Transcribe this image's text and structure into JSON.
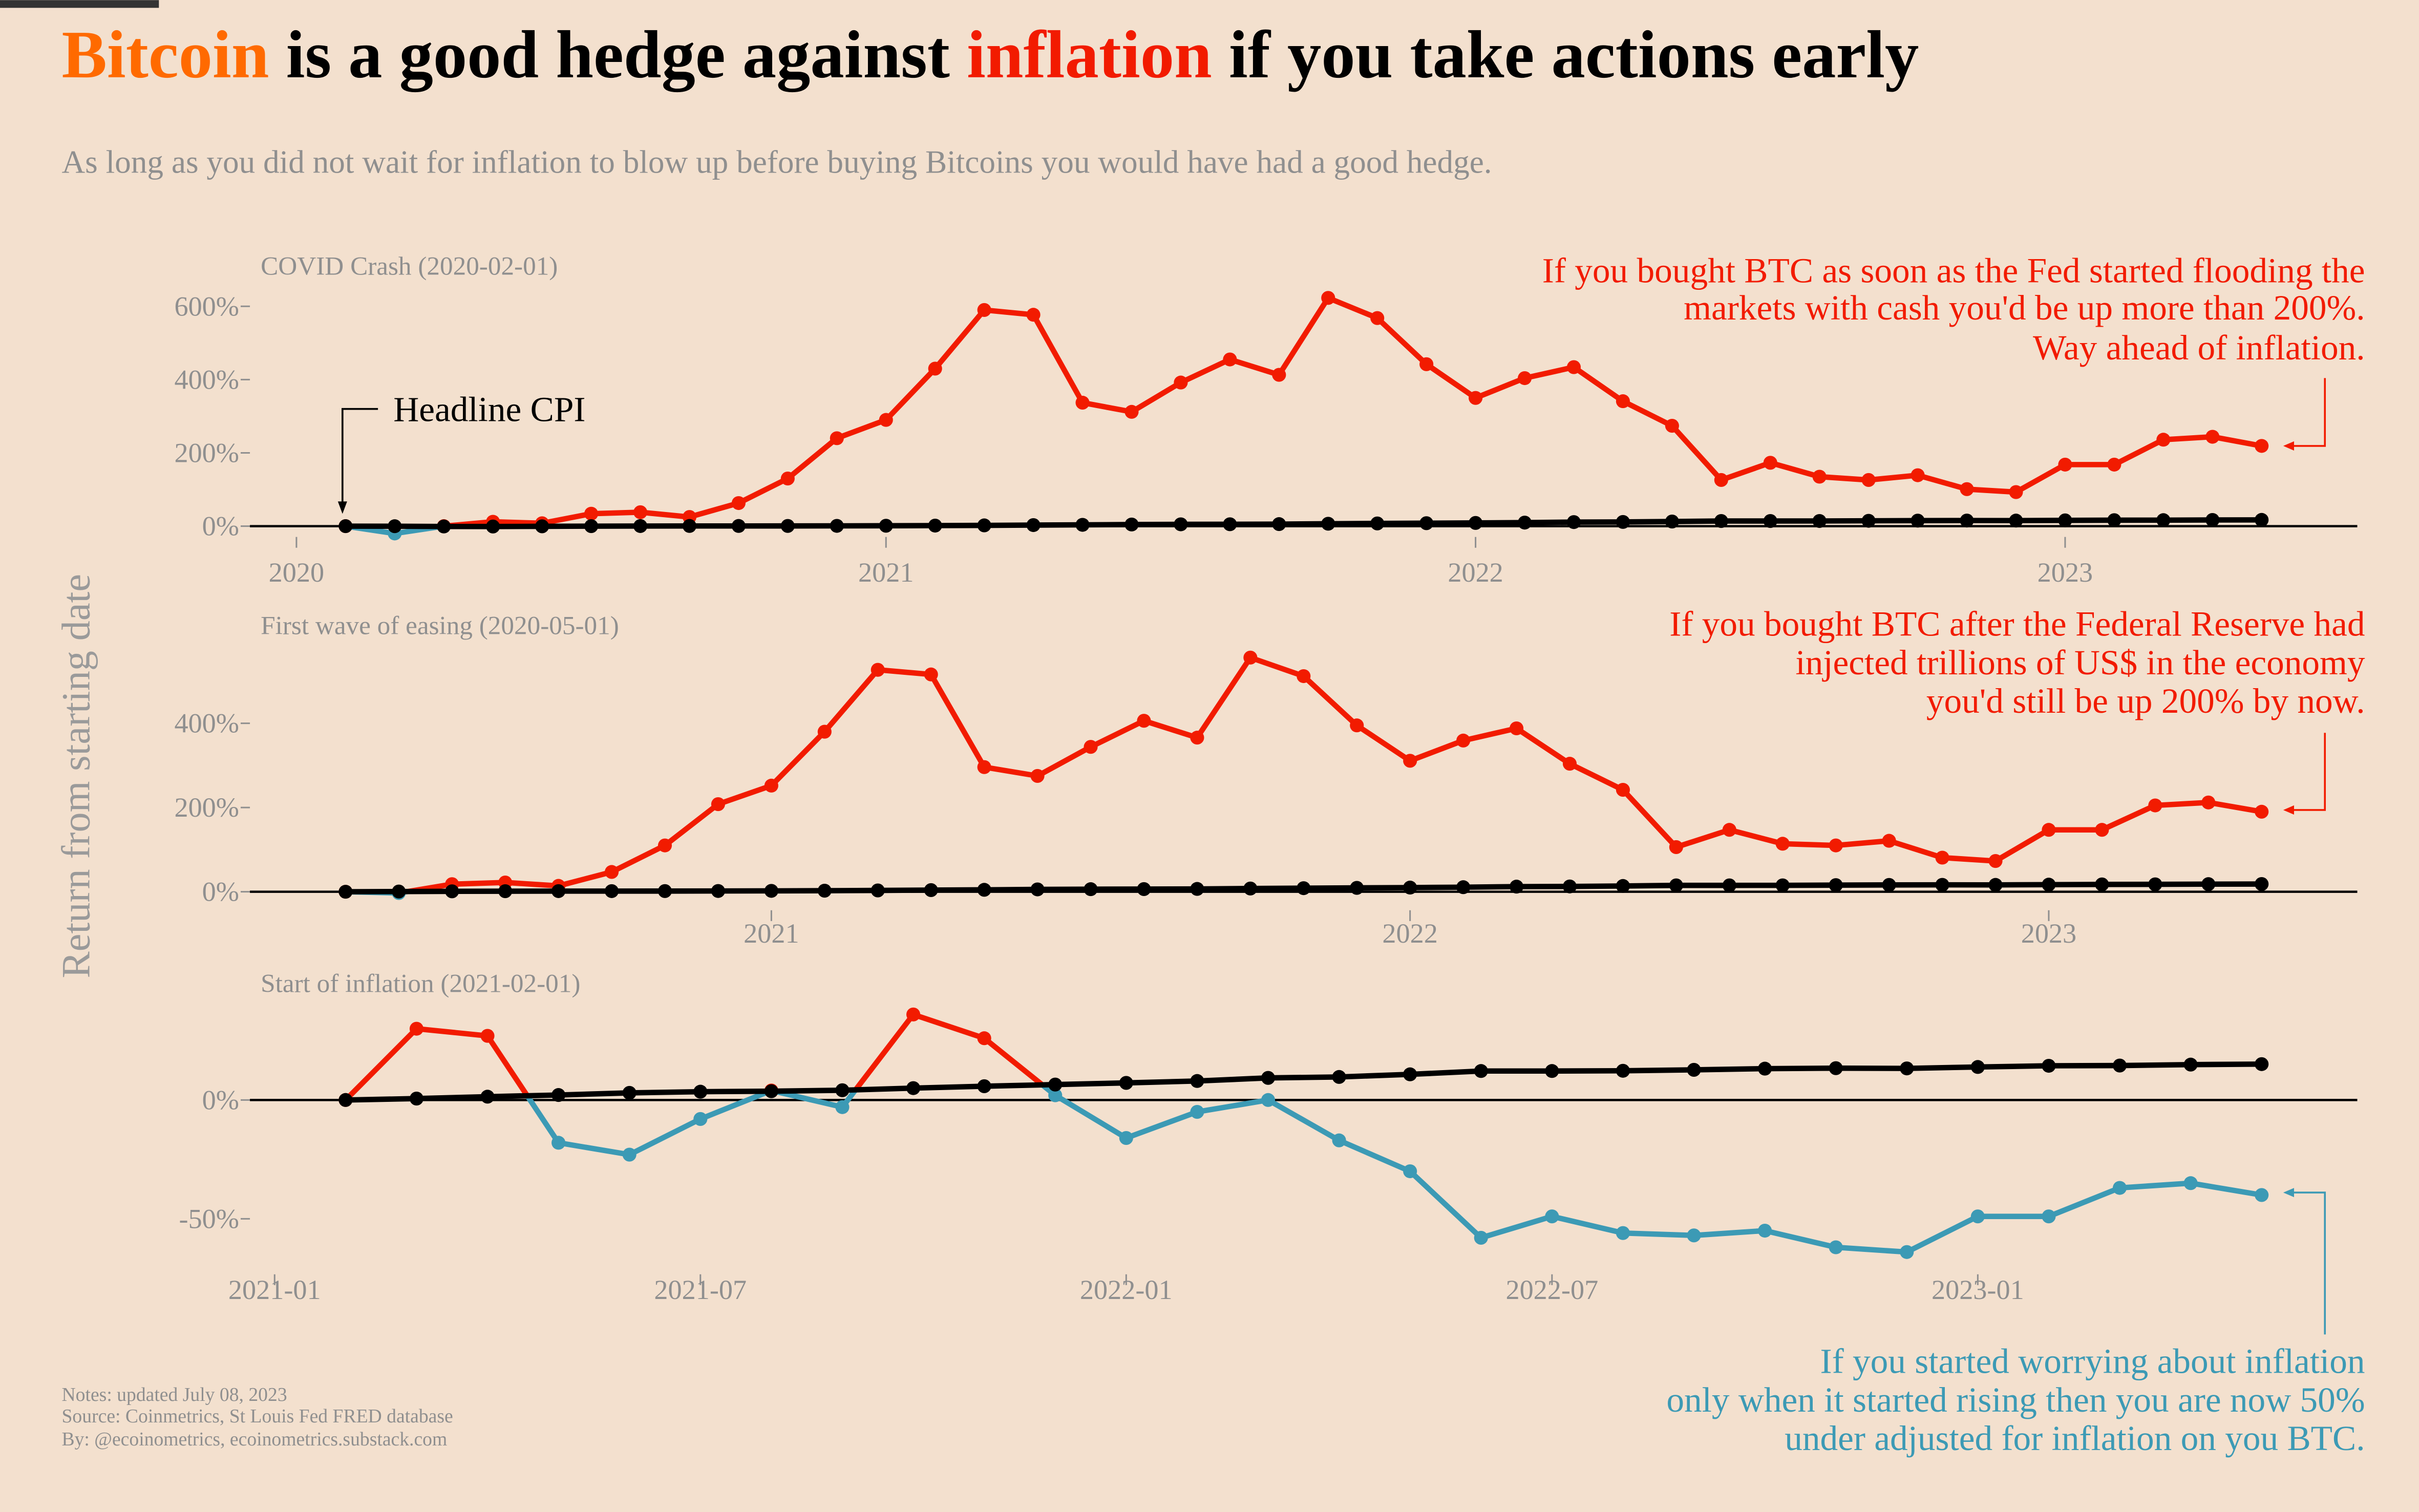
{
  "title": {
    "part1": "Bitcoin",
    "part2": " is a good hedge against ",
    "part3": "inflation",
    "part4": " if you take actions early"
  },
  "subtitle": "As long as you did not wait for inflation to blow up before buying Bitcoins you would have had a good hedge.",
  "colors": {
    "background": "#f3e0ce",
    "bitcoin_orange": "#ff6a00",
    "btc_above_cpi": "#f21b00",
    "btc_below_cpi": "#3c9ab5",
    "cpi": "#000000",
    "muted_text": "#8f8f8f"
  },
  "ylabel": "Return from starting date",
  "notes": [
    "Notes: updated July 08, 2023",
    "Source: Coinmetrics, St Louis Fed FRED database",
    "By: @ecoinometrics, ecoinometrics.substack.com"
  ],
  "chart_data": [
    {
      "type": "line",
      "title": "COVID Crash (2020-02-01)",
      "ylabel": "Return from starting date",
      "yticks": [
        {
          "v": 600,
          "label": "600%"
        },
        {
          "v": 400,
          "label": "400%"
        },
        {
          "v": 200,
          "label": "200%"
        },
        {
          "v": 0,
          "label": "0%"
        }
      ],
      "xticks": [
        {
          "date": "2020-01",
          "label": "2020"
        },
        {
          "date": "2021-01",
          "label": "2021"
        },
        {
          "date": "2022-01",
          "label": "2022"
        },
        {
          "date": "2023-01",
          "label": "2023"
        }
      ],
      "x": [
        "2020-02",
        "2020-03",
        "2020-04",
        "2020-05",
        "2020-06",
        "2020-07",
        "2020-08",
        "2020-09",
        "2020-10",
        "2020-11",
        "2020-12",
        "2021-01",
        "2021-02",
        "2021-03",
        "2021-04",
        "2021-05",
        "2021-06",
        "2021-07",
        "2021-08",
        "2021-09",
        "2021-10",
        "2021-11",
        "2021-12",
        "2022-01",
        "2022-02",
        "2022-03",
        "2022-04",
        "2022-05",
        "2022-06",
        "2022-07",
        "2022-08",
        "2022-09",
        "2022-10",
        "2022-11",
        "2022-12",
        "2023-01",
        "2023-02",
        "2023-03",
        "2023-04",
        "2023-05"
      ],
      "series": [
        {
          "name": "BTC",
          "values": [
            0,
            -20,
            0,
            12,
            8,
            34,
            38,
            25,
            63,
            130,
            240,
            290,
            430,
            590,
            577,
            337,
            312,
            392,
            455,
            413,
            623,
            568,
            442,
            350,
            404,
            434,
            341,
            274,
            126,
            173,
            135,
            126,
            139,
            101,
            93,
            168,
            168,
            236,
            244,
            219
          ]
        },
        {
          "name": "Headline CPI",
          "values": [
            0,
            -0.2,
            -0.9,
            -1.0,
            -0.5,
            0,
            0.3,
            0.5,
            0.5,
            0.6,
            0.8,
            1.1,
            1.5,
            2.1,
            2.9,
            3.6,
            4.5,
            5.0,
            5.2,
            5.6,
            6.6,
            7.4,
            8.1,
            8.8,
            9.7,
            11.1,
            11.5,
            12.6,
            14.0,
            14.0,
            14.1,
            14.6,
            15.1,
            15.3,
            15.2,
            15.8,
            16.3,
            16.4,
            16.9,
            17.1
          ]
        }
      ],
      "ylim": [
        -40,
        650
      ],
      "annotations": [
        {
          "text": "Headline CPI",
          "points_to": "CPI start"
        },
        {
          "lines": [
            "If you bought BTC as soon as the Fed started flooding the",
            "markets with cash you'd be up more than 200%.",
            "Way ahead of inflation."
          ],
          "color": "#f21b00"
        }
      ]
    },
    {
      "type": "line",
      "title": "First wave of easing (2020-05-01)",
      "yticks": [
        {
          "v": 400,
          "label": "400%"
        },
        {
          "v": 200,
          "label": "200%"
        },
        {
          "v": 0,
          "label": "0%"
        }
      ],
      "xticks": [
        {
          "date": "2021-01",
          "label": "2021"
        },
        {
          "date": "2022-01",
          "label": "2022"
        },
        {
          "date": "2023-01",
          "label": "2023"
        }
      ],
      "x": [
        "2020-05",
        "2020-06",
        "2020-07",
        "2020-08",
        "2020-09",
        "2020-10",
        "2020-11",
        "2020-12",
        "2021-01",
        "2021-02",
        "2021-03",
        "2021-04",
        "2021-05",
        "2021-06",
        "2021-07",
        "2021-08",
        "2021-09",
        "2021-10",
        "2021-11",
        "2021-12",
        "2022-01",
        "2022-02",
        "2022-03",
        "2022-04",
        "2022-05",
        "2022-06",
        "2022-07",
        "2022-08",
        "2022-09",
        "2022-10",
        "2022-11",
        "2022-12",
        "2023-01",
        "2023-02",
        "2023-03",
        "2023-04",
        "2023-05"
      ],
      "series": [
        {
          "name": "BTC",
          "values": [
            0,
            -3,
            18,
            22,
            14,
            47,
            110,
            208,
            252,
            380,
            527,
            516,
            296,
            275,
            344,
            406,
            366,
            556,
            512,
            395,
            311,
            359,
            388,
            304,
            242,
            106,
            147,
            114,
            110,
            121,
            81,
            73,
            147,
            147,
            205,
            212,
            190
          ]
        },
        {
          "name": "Headline CPI",
          "values": [
            0,
            0.5,
            1.0,
            1.3,
            1.5,
            1.5,
            1.6,
            1.8,
            2.1,
            2.5,
            3.1,
            3.9,
            4.6,
            5.6,
            6.1,
            6.3,
            6.7,
            7.7,
            8.5,
            9.2,
            9.9,
            10.8,
            12.2,
            12.6,
            13.7,
            15.1,
            15.1,
            15.2,
            15.7,
            16.2,
            16.4,
            16.3,
            16.9,
            17.4,
            17.6,
            18.1,
            18.3
          ]
        }
      ],
      "ylim": [
        -40,
        580
      ],
      "annotations": [
        {
          "lines": [
            "If you bought BTC after the Federal Reserve had",
            "injected trillions of US$ in the economy",
            "you'd still be up 200% by now."
          ],
          "color": "#f21b00"
        }
      ]
    },
    {
      "type": "line",
      "title": "Start of inflation (2021-02-01)",
      "yticks": [
        {
          "v": 0,
          "label": "0%"
        },
        {
          "v": -50,
          "label": "-50%"
        }
      ],
      "xticks": [
        {
          "date": "2021-01",
          "label": "2021-01"
        },
        {
          "date": "2021-07",
          "label": "2021-07"
        },
        {
          "date": "2022-01",
          "label": "2022-01"
        },
        {
          "date": "2022-07",
          "label": "2022-07"
        },
        {
          "date": "2023-01",
          "label": "2023-01"
        }
      ],
      "x": [
        "2021-02",
        "2021-03",
        "2021-04",
        "2021-05",
        "2021-06",
        "2021-07",
        "2021-08",
        "2021-09",
        "2021-10",
        "2021-11",
        "2021-12",
        "2022-01",
        "2022-02",
        "2022-03",
        "2022-04",
        "2022-05",
        "2022-06",
        "2022-07",
        "2022-08",
        "2022-09",
        "2022-10",
        "2022-11",
        "2022-12",
        "2023-01",
        "2023-02",
        "2023-03",
        "2023-04",
        "2023-05"
      ],
      "series": [
        {
          "name": "BTC",
          "values": [
            0,
            30,
            27,
            -18,
            -23,
            -8,
            4,
            -3,
            36,
            26,
            2,
            -16,
            -5,
            0,
            -17,
            -30,
            -58,
            -49,
            -56,
            -57,
            -55,
            -62,
            -64,
            -49,
            -49,
            -37,
            -35,
            -40
          ]
        },
        {
          "name": "Headline CPI",
          "values": [
            0,
            0.6,
            1.4,
            2.1,
            3.0,
            3.5,
            3.7,
            4.1,
            5.0,
            5.8,
            6.5,
            7.2,
            8.0,
            9.3,
            9.7,
            10.8,
            12.2,
            12.2,
            12.3,
            12.7,
            13.2,
            13.4,
            13.3,
            13.9,
            14.4,
            14.5,
            14.9,
            15.1
          ]
        }
      ],
      "ylim": [
        -70,
        40
      ],
      "annotations": [
        {
          "lines": [
            "If you started worrying about inflation ",
            "only when it started rising then you are now 50%",
            "under adjusted for inflation on you BTC."
          ],
          "color": "#3c9ab5"
        }
      ]
    }
  ]
}
